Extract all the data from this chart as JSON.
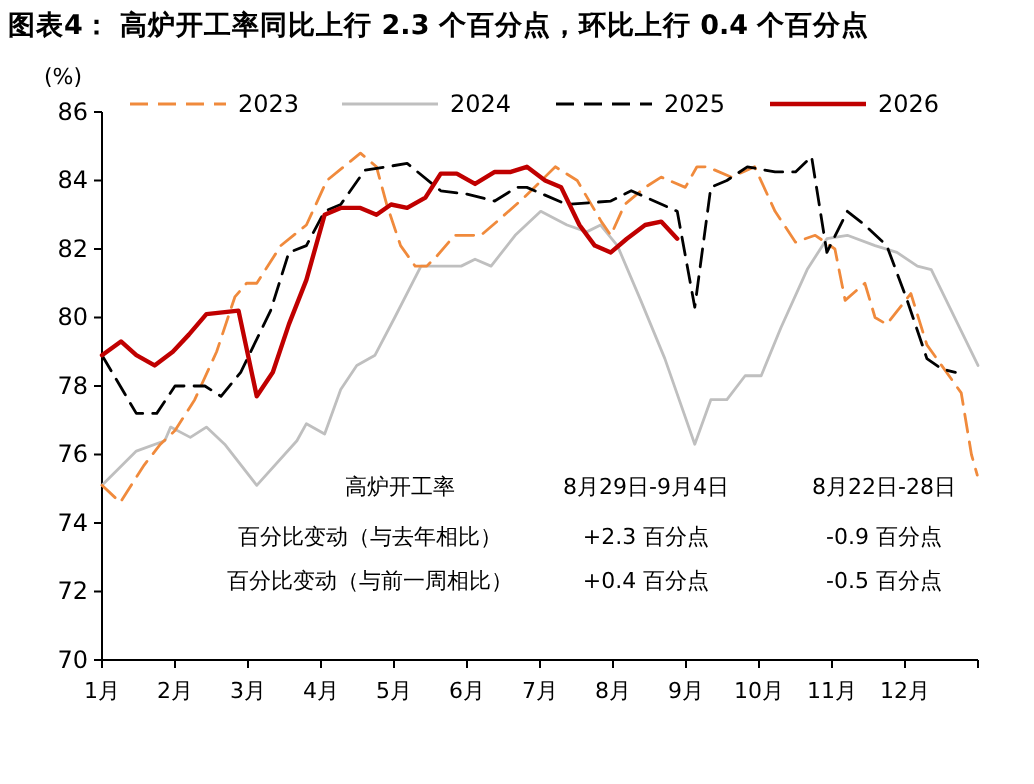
{
  "chart_data": {
    "type": "line",
    "title": "图表4：  高炉开工率同比上行 2.3 个百分点，环比上行 0.4 个百分点",
    "ylabel": "(%)",
    "xlim": [
      1,
      13
    ],
    "xticks": [
      {
        "value": 1,
        "label": "1月"
      },
      {
        "value": 2,
        "label": "2月"
      },
      {
        "value": 3,
        "label": "3月"
      },
      {
        "value": 4,
        "label": "4月"
      },
      {
        "value": 5,
        "label": "5月"
      },
      {
        "value": 6,
        "label": "6月"
      },
      {
        "value": 7,
        "label": "7月"
      },
      {
        "value": 8,
        "label": "8月"
      },
      {
        "value": 9,
        "label": "9月"
      },
      {
        "value": 10,
        "label": "10月"
      },
      {
        "value": 11,
        "label": "11月"
      },
      {
        "value": 12,
        "label": "12月"
      },
      {
        "value": 13,
        "label": null
      }
    ],
    "ylim": [
      70,
      86
    ],
    "yticks": [
      70,
      72,
      74,
      76,
      78,
      80,
      82,
      84,
      86
    ],
    "grid": false,
    "legend": "top",
    "annotations": [
      "高炉开工率",
      "8月29日-9月4日",
      "8月22日-28日",
      "百分比变动（与去年相比）",
      "+2.3 百分点",
      "-0.9 百分点",
      "百分比变动（与前一周相比）",
      "+0.4 百分点",
      "-0.5 百分点"
    ],
    "series": [
      {
        "name": "2023",
        "color": "#f08a3c",
        "line_style": "dashed",
        "x": [
          1.0,
          1.25,
          1.58,
          1.8,
          2.0,
          2.27,
          2.57,
          2.82,
          2.98,
          3.12,
          3.45,
          3.8,
          4.08,
          4.54,
          4.76,
          4.9,
          5.09,
          5.29,
          5.45,
          5.59,
          5.83,
          6.19,
          6.41,
          6.78,
          7.21,
          7.51,
          7.84,
          7.97,
          8.16,
          8.44,
          8.66,
          8.99,
          9.15,
          9.29,
          9.62,
          9.94,
          10.22,
          10.5,
          10.77,
          11.04,
          11.18,
          11.45,
          11.59,
          11.75,
          12.08,
          12.3,
          12.77,
          12.91,
          12.99
        ],
        "values": [
          75.1,
          74.6,
          75.7,
          76.3,
          76.7,
          77.6,
          79.0,
          80.6,
          81.0,
          81.0,
          82.1,
          82.7,
          84.0,
          84.8,
          84.4,
          83.3,
          82.1,
          81.5,
          81.5,
          81.8,
          82.4,
          82.4,
          82.8,
          83.5,
          84.4,
          84.0,
          82.8,
          82.4,
          83.3,
          83.8,
          84.1,
          83.8,
          84.4,
          84.4,
          84.1,
          84.4,
          83.1,
          82.2,
          82.4,
          82.0,
          80.5,
          81.0,
          80.0,
          79.8,
          80.7,
          79.2,
          77.8,
          76.0,
          75.4
        ]
      },
      {
        "name": "2024",
        "color": "#bfbfbf",
        "line_style": "solid",
        "x": [
          1.0,
          1.47,
          1.86,
          1.94,
          2.21,
          2.43,
          2.68,
          3.12,
          3.67,
          3.8,
          4.05,
          4.27,
          4.49,
          4.74,
          5.01,
          5.37,
          5.92,
          6.11,
          6.33,
          6.66,
          7.01,
          7.37,
          7.64,
          7.83,
          8.06,
          8.38,
          8.71,
          9.12,
          9.34,
          9.56,
          9.81,
          10.03,
          10.3,
          10.66,
          10.93,
          11.21,
          11.59,
          11.89,
          12.17,
          12.36,
          13.0
        ],
        "values": [
          75.1,
          76.1,
          76.4,
          76.8,
          76.5,
          76.8,
          76.3,
          75.1,
          76.4,
          76.9,
          76.6,
          77.9,
          78.6,
          78.9,
          80.0,
          81.5,
          81.5,
          81.7,
          81.5,
          82.4,
          83.1,
          82.7,
          82.5,
          82.7,
          82.1,
          80.5,
          78.8,
          76.3,
          77.6,
          77.6,
          78.3,
          78.3,
          79.7,
          81.4,
          82.3,
          82.4,
          82.1,
          81.9,
          81.5,
          81.4,
          78.6
        ]
      },
      {
        "name": "2025",
        "color": "#000000",
        "line_style": "dashed",
        "x": [
          1.0,
          1.47,
          1.75,
          2.0,
          2.41,
          2.63,
          2.9,
          3.31,
          3.56,
          3.8,
          4.05,
          4.27,
          4.6,
          4.9,
          5.18,
          5.64,
          6.0,
          6.38,
          6.68,
          6.82,
          7.37,
          7.97,
          8.25,
          8.88,
          9.12,
          9.34,
          9.56,
          9.84,
          10.22,
          10.5,
          10.72,
          10.93,
          11.21,
          11.45,
          11.75,
          12.03,
          12.3,
          12.5,
          12.69
        ],
        "values": [
          78.9,
          77.2,
          77.2,
          78.0,
          78.0,
          77.7,
          78.4,
          80.2,
          81.9,
          82.1,
          83.1,
          83.3,
          84.3,
          84.4,
          84.5,
          83.7,
          83.6,
          83.4,
          83.8,
          83.8,
          83.3,
          83.4,
          83.7,
          83.1,
          80.3,
          83.8,
          84.0,
          84.4,
          84.25,
          84.25,
          84.7,
          81.9,
          83.1,
          82.7,
          82.1,
          80.5,
          78.8,
          78.5,
          78.4
        ]
      },
      {
        "name": "2026",
        "color": "#c00000",
        "line_style": "solid",
        "x": [
          1.0,
          1.26,
          1.47,
          1.72,
          1.97,
          2.19,
          2.43,
          2.87,
          3.12,
          3.34,
          3.56,
          3.8,
          4.05,
          4.27,
          4.54,
          4.76,
          4.96,
          5.18,
          5.43,
          5.64,
          5.86,
          6.11,
          6.38,
          6.6,
          6.82,
          7.07,
          7.29,
          7.54,
          7.75,
          7.97,
          8.19,
          8.44,
          8.66,
          8.88
        ],
        "values": [
          78.9,
          79.3,
          78.9,
          78.6,
          79.0,
          79.5,
          80.1,
          80.2,
          77.7,
          78.4,
          79.8,
          81.1,
          83.0,
          83.2,
          83.2,
          83.0,
          83.3,
          83.2,
          83.5,
          84.2,
          84.2,
          83.9,
          84.25,
          84.25,
          84.4,
          84.0,
          83.8,
          82.7,
          82.1,
          81.9,
          82.3,
          82.7,
          82.8,
          82.3
        ]
      }
    ]
  }
}
